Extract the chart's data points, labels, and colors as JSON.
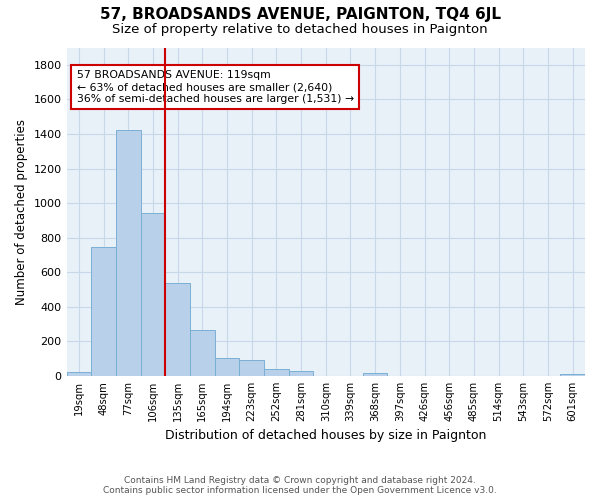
{
  "title": "57, BROADSANDS AVENUE, PAIGNTON, TQ4 6JL",
  "subtitle": "Size of property relative to detached houses in Paignton",
  "xlabel": "Distribution of detached houses by size in Paignton",
  "ylabel": "Number of detached properties",
  "footer_line1": "Contains HM Land Registry data © Crown copyright and database right 2024.",
  "footer_line2": "Contains public sector information licensed under the Open Government Licence v3.0.",
  "categories": [
    "19sqm",
    "48sqm",
    "77sqm",
    "106sqm",
    "135sqm",
    "165sqm",
    "194sqm",
    "223sqm",
    "252sqm",
    "281sqm",
    "310sqm",
    "339sqm",
    "368sqm",
    "397sqm",
    "426sqm",
    "456sqm",
    "485sqm",
    "514sqm",
    "543sqm",
    "572sqm",
    "601sqm"
  ],
  "values": [
    22,
    745,
    1425,
    940,
    535,
    265,
    105,
    92,
    38,
    28,
    0,
    0,
    15,
    0,
    0,
    0,
    0,
    0,
    0,
    0,
    12
  ],
  "bar_color": "#b8d0ea",
  "bar_edge_color": "#7aafd4",
  "annotation_text1": "57 BROADSANDS AVENUE: 119sqm",
  "annotation_text2": "← 63% of detached houses are smaller (2,640)",
  "annotation_text3": "36% of semi-detached houses are larger (1,531) →",
  "annotation_box_color": "#cc0000",
  "ylim": [
    0,
    1900
  ],
  "yticks": [
    0,
    200,
    400,
    600,
    800,
    1000,
    1200,
    1400,
    1600,
    1800
  ],
  "grid_color": "#c8d8e8",
  "bg_color": "#e8f0f8",
  "title_fontsize": 11,
  "subtitle_fontsize": 9.5
}
